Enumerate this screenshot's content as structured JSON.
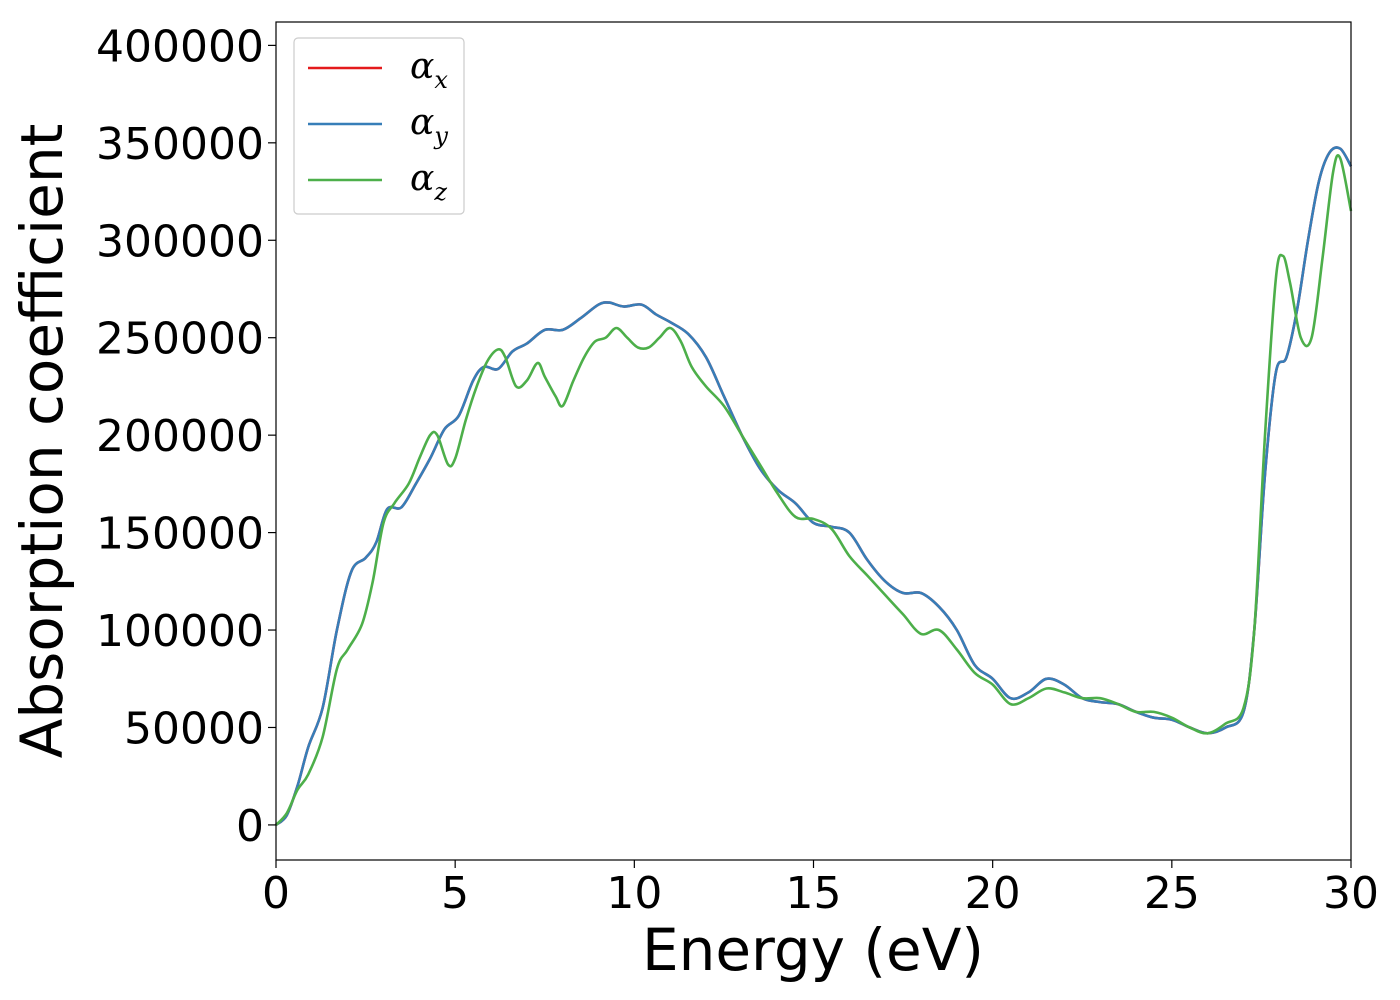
{
  "chart_data": {
    "type": "line",
    "xlabel": "Energy (eV)",
    "ylabel": "Absorption coefficient",
    "xlim": [
      0,
      30
    ],
    "ylim": [
      -18000,
      412000
    ],
    "xticks": [
      "0",
      "5",
      "10",
      "15",
      "20",
      "25",
      "30"
    ],
    "yticks": [
      "0",
      "50000",
      "100000",
      "150000",
      "200000",
      "250000",
      "300000",
      "350000",
      "400000"
    ],
    "grid": false,
    "legend_position": "top-left",
    "series": [
      {
        "name": "α_x",
        "legend_symbol": "α",
        "legend_sub": "x",
        "color": "#e41a1c",
        "x": [
          0,
          0.3,
          0.6,
          0.9,
          1.3,
          1.7,
          2.1,
          2.5,
          2.8,
          3.1,
          3.5,
          3.9,
          4.3,
          4.7,
          5.1,
          5.5,
          5.8,
          6.2,
          6.6,
          7.0,
          7.5,
          8.0,
          8.5,
          9.0,
          9.3,
          9.7,
          10.2,
          10.6,
          11.0,
          11.5,
          12.0,
          12.5,
          13.0,
          13.5,
          14.0,
          14.5,
          15.0,
          15.5,
          16.0,
          16.5,
          17.0,
          17.5,
          18.0,
          18.5,
          19.0,
          19.5,
          20.0,
          20.5,
          21.0,
          21.5,
          22.0,
          22.5,
          23.0,
          23.5,
          24.0,
          24.5,
          25.0,
          25.5,
          26.0,
          26.5,
          27.0,
          27.3,
          27.6,
          27.9,
          28.2,
          28.5,
          28.8,
          29.1,
          29.4,
          29.7,
          30.0
        ],
        "y": [
          0,
          5000,
          20000,
          40000,
          60000,
          100000,
          130000,
          137000,
          145000,
          162000,
          163000,
          175000,
          188000,
          203000,
          210000,
          228000,
          235000,
          234000,
          243000,
          247000,
          254000,
          254000,
          260000,
          267000,
          268000,
          266000,
          267000,
          262000,
          258000,
          252000,
          240000,
          220000,
          200000,
          183000,
          172000,
          165000,
          155000,
          153000,
          150000,
          136000,
          125000,
          119000,
          119000,
          112000,
          100000,
          82000,
          75000,
          65000,
          68000,
          75000,
          72000,
          65000,
          63000,
          62000,
          58000,
          55000,
          54000,
          50000,
          47000,
          50000,
          58000,
          100000,
          180000,
          232000,
          240000,
          265000,
          300000,
          330000,
          345000,
          347000,
          338000
        ]
      },
      {
        "name": "α_y",
        "legend_symbol": "α",
        "legend_sub": "y",
        "color": "#377eb8",
        "x": [
          0,
          0.3,
          0.6,
          0.9,
          1.3,
          1.7,
          2.1,
          2.5,
          2.8,
          3.1,
          3.5,
          3.9,
          4.3,
          4.7,
          5.1,
          5.5,
          5.8,
          6.2,
          6.6,
          7.0,
          7.5,
          8.0,
          8.5,
          9.0,
          9.3,
          9.7,
          10.2,
          10.6,
          11.0,
          11.5,
          12.0,
          12.5,
          13.0,
          13.5,
          14.0,
          14.5,
          15.0,
          15.5,
          16.0,
          16.5,
          17.0,
          17.5,
          18.0,
          18.5,
          19.0,
          19.5,
          20.0,
          20.5,
          21.0,
          21.5,
          22.0,
          22.5,
          23.0,
          23.5,
          24.0,
          24.5,
          25.0,
          25.5,
          26.0,
          26.5,
          27.0,
          27.3,
          27.6,
          27.9,
          28.2,
          28.5,
          28.8,
          29.1,
          29.4,
          29.7,
          30.0
        ],
        "y": [
          0,
          5000,
          20000,
          40000,
          60000,
          100000,
          130000,
          137000,
          145000,
          162000,
          163000,
          175000,
          188000,
          203000,
          210000,
          228000,
          235000,
          234000,
          243000,
          247000,
          254000,
          254000,
          260000,
          267000,
          268000,
          266000,
          267000,
          262000,
          258000,
          252000,
          240000,
          220000,
          200000,
          183000,
          172000,
          165000,
          155000,
          153000,
          150000,
          136000,
          125000,
          119000,
          119000,
          112000,
          100000,
          82000,
          75000,
          65000,
          68000,
          75000,
          72000,
          65000,
          63000,
          62000,
          58000,
          55000,
          54000,
          50000,
          47000,
          50000,
          58000,
          100000,
          180000,
          232000,
          240000,
          265000,
          300000,
          330000,
          345000,
          347000,
          338000
        ]
      },
      {
        "name": "α_z",
        "legend_symbol": "α",
        "legend_sub": "z",
        "color": "#4daf4a",
        "x": [
          0,
          0.3,
          0.6,
          0.9,
          1.3,
          1.7,
          2.0,
          2.4,
          2.7,
          3.0,
          3.3,
          3.7,
          4.0,
          4.3,
          4.5,
          4.8,
          5.0,
          5.3,
          5.6,
          5.9,
          6.2,
          6.4,
          6.7,
          7.0,
          7.3,
          7.5,
          7.8,
          8.0,
          8.3,
          8.6,
          8.9,
          9.2,
          9.5,
          9.8,
          10.1,
          10.4,
          10.7,
          11.0,
          11.3,
          11.6,
          12.0,
          12.5,
          13.0,
          13.5,
          14.0,
          14.5,
          15.0,
          15.5,
          16.0,
          16.5,
          17.0,
          17.5,
          18.0,
          18.5,
          19.0,
          19.5,
          20.0,
          20.5,
          21.0,
          21.5,
          22.0,
          22.5,
          23.0,
          23.5,
          24.0,
          24.5,
          25.0,
          25.5,
          26.0,
          26.5,
          27.0,
          27.3,
          27.6,
          27.9,
          28.1,
          28.3,
          28.6,
          28.9,
          29.2,
          29.5,
          29.7,
          30.0
        ],
        "y": [
          0,
          6000,
          18000,
          26000,
          45000,
          80000,
          90000,
          103000,
          125000,
          155000,
          165000,
          175000,
          188000,
          200000,
          200000,
          185000,
          188000,
          208000,
          225000,
          238000,
          244000,
          240000,
          225000,
          228000,
          237000,
          230000,
          220000,
          215000,
          228000,
          240000,
          248000,
          250000,
          255000,
          250000,
          245000,
          245000,
          250000,
          255000,
          248000,
          235000,
          225000,
          215000,
          200000,
          185000,
          170000,
          158000,
          157000,
          152000,
          138000,
          128000,
          118000,
          108000,
          98000,
          100000,
          90000,
          78000,
          72000,
          62000,
          65000,
          70000,
          68000,
          65000,
          65000,
          62000,
          58000,
          58000,
          55000,
          50000,
          47000,
          52000,
          60000,
          100000,
          200000,
          280000,
          292000,
          278000,
          250000,
          250000,
          290000,
          335000,
          342000,
          315000
        ]
      }
    ]
  }
}
